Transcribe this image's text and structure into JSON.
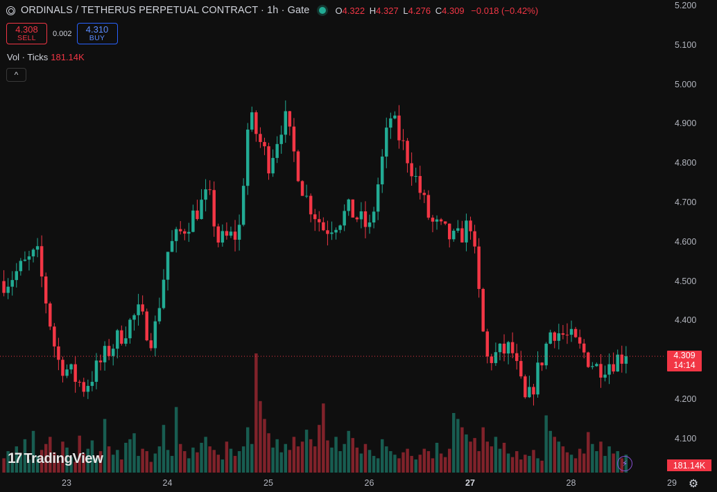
{
  "header": {
    "title": "ORDINALS / TETHERUS PERPETUAL CONTRACT · 1h · Gate",
    "ohlc": {
      "o_label": "O",
      "o": "4.322",
      "h_label": "H",
      "h": "4.327",
      "l_label": "L",
      "l": "4.276",
      "c_label": "C",
      "c": "4.309",
      "change": "−0.018 (−0.42%)"
    }
  },
  "trade": {
    "sell_price": "4.308",
    "sell_label": "SELL",
    "spread": "0.002",
    "buy_price": "4.310",
    "buy_label": "BUY"
  },
  "volume_legend": {
    "label": "Vol · Ticks",
    "value": "181.14K"
  },
  "collapse_icon": "^",
  "price_scale": [
    "5.200",
    "5.100",
    "5.000",
    "4.900",
    "4.800",
    "4.700",
    "4.600",
    "4.500",
    "4.400",
    "4.300",
    "4.200",
    "4.100"
  ],
  "last_price": {
    "price": "4.309",
    "countdown": "14:14"
  },
  "volume_tag": "181.14K",
  "time_scale": [
    "23",
    "24",
    "25",
    "26",
    "27",
    "28",
    "29"
  ],
  "logo_text": "TradingView",
  "icons": {
    "symbol": "symbol-icon",
    "status": "status-dot-icon",
    "bolt": "lightning-icon",
    "settings": "gear-icon"
  },
  "colors": {
    "up": "#22ab94",
    "down": "#f23645",
    "background": "#0f0f0f",
    "buy": "#2962ff"
  },
  "chart_data": {
    "type": "candlestick",
    "interval": "1h",
    "x": [
      "23",
      "24",
      "25",
      "26",
      "27",
      "28",
      "29"
    ],
    "ylim": [
      4.05,
      5.2
    ],
    "grid": false,
    "last": 4.309,
    "anchors": [
      {
        "day": 22.45,
        "price": 4.5
      },
      {
        "day": 22.75,
        "price": 4.57
      },
      {
        "day": 22.95,
        "price": 4.3
      },
      {
        "day": 23.22,
        "price": 4.23
      },
      {
        "day": 23.45,
        "price": 4.32
      },
      {
        "day": 23.75,
        "price": 4.42
      },
      {
        "day": 23.9,
        "price": 4.35
      },
      {
        "day": 24.05,
        "price": 4.58
      },
      {
        "day": 24.45,
        "price": 4.72
      },
      {
        "day": 24.55,
        "price": 4.6
      },
      {
        "day": 24.75,
        "price": 4.62
      },
      {
        "day": 24.85,
        "price": 4.92
      },
      {
        "day": 25.05,
        "price": 4.8
      },
      {
        "day": 25.2,
        "price": 4.92
      },
      {
        "day": 25.4,
        "price": 4.72
      },
      {
        "day": 25.6,
        "price": 4.63
      },
      {
        "day": 25.85,
        "price": 4.68
      },
      {
        "day": 26.05,
        "price": 4.63
      },
      {
        "day": 26.25,
        "price": 4.92
      },
      {
        "day": 26.45,
        "price": 4.8
      },
      {
        "day": 26.65,
        "price": 4.65
      },
      {
        "day": 26.9,
        "price": 4.6
      },
      {
        "day": 27.05,
        "price": 4.65
      },
      {
        "day": 27.2,
        "price": 4.3
      },
      {
        "day": 27.45,
        "price": 4.33
      },
      {
        "day": 27.6,
        "price": 4.18
      },
      {
        "day": 27.85,
        "price": 4.38
      },
      {
        "day": 28.05,
        "price": 4.35
      },
      {
        "day": 28.3,
        "price": 4.28
      },
      {
        "day": 28.55,
        "price": 4.31
      }
    ],
    "volume_ticks": [
      12,
      18,
      9,
      22,
      15,
      28,
      11,
      35,
      14,
      19,
      24,
      30,
      17,
      10,
      26,
      21,
      13,
      9,
      31,
      16,
      20,
      27,
      12,
      18,
      45,
      22,
      15,
      19,
      11,
      25,
      28,
      33,
      14,
      20,
      18,
      9,
      16,
      22,
      40,
      19,
      14,
      55,
      24,
      18,
      12,
      21,
      17,
      25,
      30,
      22,
      19,
      15,
      11,
      26,
      20,
      14,
      18,
      22,
      38,
      24,
      100,
      60,
      45,
      33,
      21,
      28,
      17,
      24,
      19,
      30,
      22,
      26,
      36,
      28,
      22,
      40,
      58,
      27,
      21,
      30,
      18,
      24,
      35,
      29,
      21,
      16,
      24,
      19,
      14,
      12,
      28,
      22,
      18,
      15,
      12,
      17,
      20,
      14,
      11,
      15,
      20,
      18,
      12,
      25,
      16,
      13,
      20,
      50,
      45,
      38,
      32,
      26,
      29,
      18,
      38,
      26,
      22,
      30,
      20,
      25,
      16,
      13,
      18,
      11,
      15,
      14,
      19,
      12,
      10,
      48,
      35,
      30,
      26,
      22,
      17,
      15,
      12,
      20,
      16,
      34,
      24,
      18,
      26,
      14,
      22,
      16,
      18,
      12,
      15,
      10,
      13,
      12,
      18,
      14,
      10,
      12,
      9,
      8,
      10,
      6
    ]
  }
}
